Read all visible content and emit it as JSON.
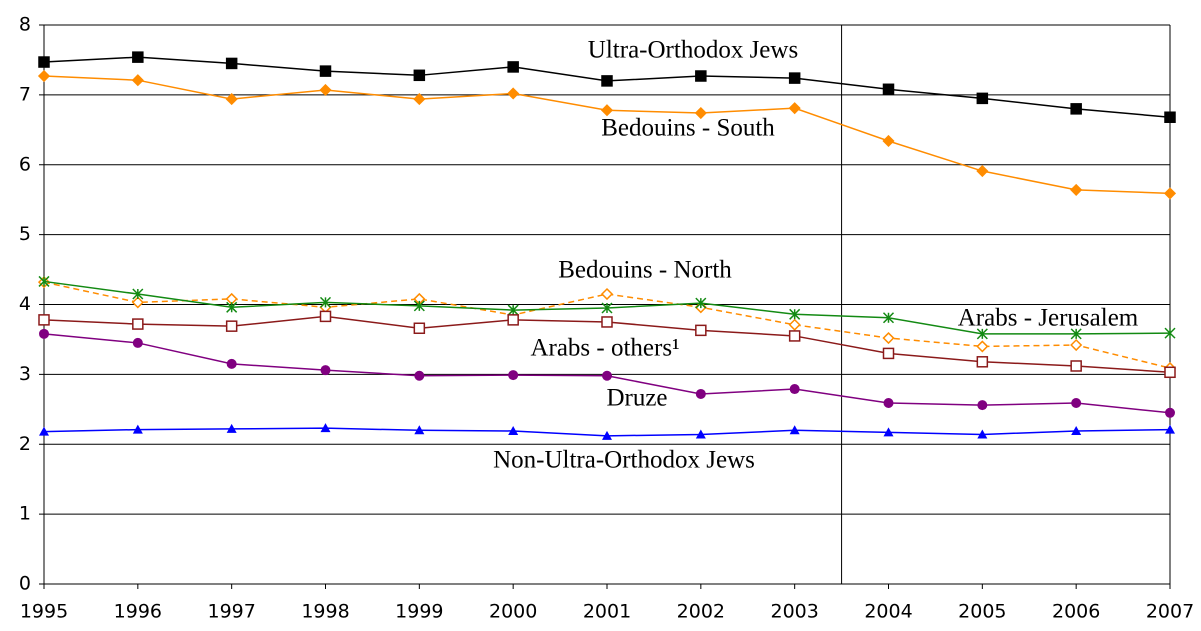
{
  "chart_data": {
    "type": "line",
    "x": [
      1995,
      1996,
      1997,
      1998,
      1999,
      2000,
      2001,
      2002,
      2003,
      2004,
      2005,
      2006,
      2007
    ],
    "xlim": [
      1995,
      2007
    ],
    "xticks": [
      1995,
      1996,
      1997,
      1998,
      1999,
      2000,
      2001,
      2002,
      2003,
      2004,
      2005,
      2006,
      2007
    ],
    "ylim": [
      0,
      8
    ],
    "yticks": [
      0,
      1,
      2,
      3,
      4,
      5,
      6,
      7,
      8
    ],
    "grid": true,
    "vline": 2003.5,
    "series": [
      {
        "name": "Ultra-Orthodox Jews",
        "color": "#000000",
        "marker": "square",
        "dashed": false,
        "values": [
          7.47,
          7.54,
          7.45,
          7.34,
          7.28,
          7.4,
          7.2,
          7.27,
          7.24,
          7.08,
          6.95,
          6.8,
          6.68
        ]
      },
      {
        "name": "Bedouins - South",
        "color": "#ff8c00",
        "marker": "diamond",
        "dashed": false,
        "values": [
          7.27,
          7.21,
          6.94,
          7.07,
          6.94,
          7.02,
          6.78,
          6.74,
          6.81,
          6.34,
          5.91,
          5.64,
          5.59
        ]
      },
      {
        "name": "Bedouins - North",
        "color": "#ff8c00",
        "marker": "open-diamond",
        "dashed": true,
        "values": [
          4.32,
          4.03,
          4.08,
          3.96,
          4.08,
          3.85,
          4.15,
          3.96,
          3.71,
          3.52,
          3.4,
          3.42,
          3.09
        ]
      },
      {
        "name": "Arabs - Jerusalem",
        "color": "#138a13",
        "marker": "asterisk",
        "dashed": false,
        "values": [
          4.33,
          4.15,
          3.96,
          4.03,
          3.98,
          3.92,
          3.95,
          4.02,
          3.86,
          3.81,
          3.58,
          3.58,
          3.59
        ]
      },
      {
        "name": "Arabs - others¹",
        "color": "#8b1a1a",
        "marker": "open-square",
        "dashed": false,
        "values": [
          3.78,
          3.72,
          3.69,
          3.83,
          3.66,
          3.78,
          3.75,
          3.63,
          3.55,
          3.3,
          3.18,
          3.12,
          3.03
        ]
      },
      {
        "name": "Druze",
        "color": "#800080",
        "marker": "circle",
        "dashed": false,
        "values": [
          3.58,
          3.45,
          3.15,
          3.06,
          2.98,
          2.99,
          2.98,
          2.72,
          2.79,
          2.59,
          2.56,
          2.59,
          2.45
        ]
      },
      {
        "name": "Non-Ultra-Orthodox Jews",
        "color": "#0000ff",
        "marker": "triangle",
        "dashed": false,
        "values": [
          2.18,
          2.21,
          2.22,
          2.23,
          2.2,
          2.19,
          2.12,
          2.14,
          2.2,
          2.17,
          2.14,
          2.19,
          2.21
        ]
      }
    ]
  }
}
